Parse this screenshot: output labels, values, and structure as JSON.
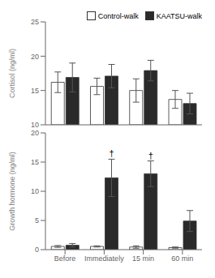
{
  "chart_data": [
    {
      "type": "bar",
      "categories": [
        "Before",
        "Immediately",
        "15 min",
        "60 min"
      ],
      "series": [
        {
          "name": "Control-walk",
          "color": "#ffffff",
          "values": [
            16.2,
            15.6,
            15.0,
            13.7
          ],
          "errors": [
            1.5,
            1.2,
            1.7,
            1.3
          ]
        },
        {
          "name": "KAATSU-walk",
          "color": "#2a2a2a",
          "values": [
            16.9,
            17.1,
            17.9,
            13.1
          ],
          "errors": [
            2.1,
            1.7,
            1.5,
            1.5
          ]
        }
      ],
      "y_label": "Cortisol (ng/ml)",
      "ylim": [
        10,
        25
      ],
      "yticks": [
        10,
        15,
        20,
        25
      ],
      "legend": "upper right",
      "tick_labels": "y"
    },
    {
      "type": "bar",
      "categories": [
        "Before",
        "Immediately",
        "15 min",
        "60 min"
      ],
      "series": [
        {
          "name": "Control-walk",
          "color": "#ffffff",
          "values": [
            0.55,
            0.55,
            0.45,
            0.35
          ],
          "errors": [
            0.15,
            0.1,
            0.2,
            0.1
          ]
        },
        {
          "name": "KAATSU-walk",
          "color": "#2a2a2a",
          "values": [
            0.75,
            12.3,
            13.0,
            4.9
          ],
          "errors": [
            0.3,
            3.2,
            2.2,
            1.8
          ]
        }
      ],
      "y_label": "Growth hormone (ng/ml)",
      "ylim": [
        0,
        20
      ],
      "yticks": [
        0,
        5,
        10,
        15,
        20
      ],
      "annotations": [
        {
          "text": "†",
          "category": "Immediately",
          "series": "KAATSU-walk"
        },
        {
          "text": "†",
          "category": "15 min",
          "series": "KAATSU-walk"
        }
      ]
    }
  ]
}
